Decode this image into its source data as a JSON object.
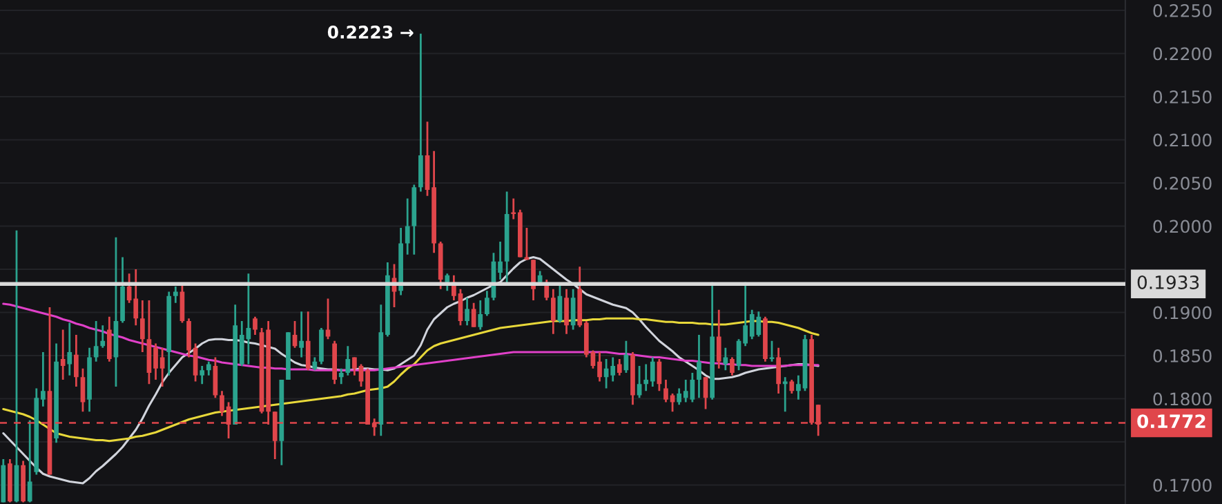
{
  "chart_data": {
    "type": "candlestick",
    "categories": [
      null,
      null,
      null,
      null,
      null,
      null,
      null,
      null,
      null,
      null,
      null,
      null,
      null,
      null,
      null,
      null,
      null,
      null,
      null,
      null,
      null,
      null,
      null,
      null,
      null,
      null,
      null,
      null,
      null,
      null,
      null,
      null,
      null,
      null,
      null,
      null,
      null,
      null,
      null,
      null,
      null,
      null,
      null,
      null,
      null,
      null,
      null,
      null,
      null,
      null,
      null,
      null,
      null,
      null,
      null,
      null,
      null,
      null,
      null,
      null,
      null,
      null,
      null,
      null,
      null,
      null,
      null,
      null,
      null,
      null,
      null,
      null,
      null,
      null,
      null,
      null,
      null,
      null,
      null,
      null,
      null,
      null,
      null,
      null,
      null,
      null,
      null,
      null,
      null,
      null,
      null,
      null,
      null,
      null,
      null,
      null,
      null,
      null,
      null,
      null,
      null,
      null,
      null,
      null,
      null,
      null,
      null,
      null,
      null,
      null,
      null,
      null,
      null,
      null,
      null,
      null,
      null,
      null,
      null,
      null,
      null,
      null,
      null,
      null
    ],
    "ohlc": [
      [
        0.168,
        0.173,
        0.168,
        0.1723
      ],
      [
        0.1725,
        0.173,
        0.168,
        0.1681
      ],
      [
        0.1681,
        0.1995,
        0.168,
        0.1723
      ],
      [
        0.1723,
        0.1728,
        0.168,
        0.1681
      ],
      [
        0.1681,
        0.1775,
        0.168,
        0.1704
      ],
      [
        0.1715,
        0.1812,
        0.1712,
        0.1801
      ],
      [
        0.1799,
        0.1854,
        0.1791,
        0.1809
      ],
      [
        0.1809,
        0.1906,
        0.1712,
        0.1712
      ],
      [
        0.1754,
        0.1864,
        0.1749,
        0.1843
      ],
      [
        0.1846,
        0.188,
        0.1822,
        0.1838
      ],
      [
        0.184,
        0.1888,
        0.1827,
        0.1854
      ],
      [
        0.1851,
        0.1874,
        0.1814,
        0.1825
      ],
      [
        0.1825,
        0.1835,
        0.1785,
        0.1796
      ],
      [
        0.1799,
        0.1859,
        0.1785,
        0.1848
      ],
      [
        0.1848,
        0.189,
        0.1843,
        0.1861
      ],
      [
        0.1861,
        0.1885,
        0.1859,
        0.1867
      ],
      [
        0.188,
        0.1895,
        0.1843,
        0.1846
      ],
      [
        0.1848,
        0.1987,
        0.1814,
        0.189
      ],
      [
        0.189,
        0.1964,
        0.1888,
        0.193
      ],
      [
        0.193,
        0.1945,
        0.1911,
        0.1914
      ],
      [
        0.1916,
        0.195,
        0.1885,
        0.1893
      ],
      [
        0.1893,
        0.1914,
        0.1854,
        0.1869
      ],
      [
        0.1869,
        0.1914,
        0.1817,
        0.183
      ],
      [
        0.1859,
        0.1864,
        0.1822,
        0.1835
      ],
      [
        0.1848,
        0.1859,
        0.1814,
        0.1835
      ],
      [
        0.1854,
        0.1924,
        0.1827,
        0.1919
      ],
      [
        0.1919,
        0.193,
        0.1911,
        0.1924
      ],
      [
        0.1924,
        0.1932,
        0.1888,
        0.189
      ],
      [
        0.189,
        0.1893,
        0.1848,
        0.1856
      ],
      [
        0.1859,
        0.1864,
        0.182,
        0.1827
      ],
      [
        0.1827,
        0.1838,
        0.1817,
        0.1833
      ],
      [
        0.1833,
        0.1843,
        0.1827,
        0.184
      ],
      [
        0.1838,
        0.1848,
        0.1801,
        0.1804
      ],
      [
        0.1804,
        0.1809,
        0.178,
        0.1785
      ],
      [
        0.1791,
        0.1796,
        0.1754,
        0.177
      ],
      [
        0.177,
        0.1909,
        0.177,
        0.1885
      ],
      [
        0.184,
        0.189,
        0.1838,
        0.1874
      ],
      [
        0.1869,
        0.1945,
        0.184,
        0.1882
      ],
      [
        0.1893,
        0.1895,
        0.1874,
        0.188
      ],
      [
        0.1877,
        0.1882,
        0.1783,
        0.1785
      ],
      [
        0.188,
        0.189,
        0.177,
        0.1785
      ],
      [
        0.1785,
        0.1785,
        0.173,
        0.1751
      ],
      [
        0.1751,
        0.1822,
        0.1723,
        0.1822
      ],
      [
        0.1822,
        0.1877,
        0.1822,
        0.1877
      ],
      [
        0.1874,
        0.189,
        0.1859,
        0.1861
      ],
      [
        0.1859,
        0.1901,
        0.1848,
        0.1867
      ],
      [
        0.1867,
        0.1901,
        0.1833,
        0.1835
      ],
      [
        0.1835,
        0.1848,
        0.1833,
        0.1843
      ],
      [
        0.1843,
        0.1882,
        0.184,
        0.188
      ],
      [
        0.188,
        0.1916,
        0.1869,
        0.1872
      ],
      [
        0.1864,
        0.1867,
        0.1817,
        0.1822
      ],
      [
        0.1825,
        0.1835,
        0.1817,
        0.183
      ],
      [
        0.183,
        0.1861,
        0.1827,
        0.1846
      ],
      [
        0.1848,
        0.1848,
        0.1827,
        0.1835
      ],
      [
        0.1838,
        0.184,
        0.1814,
        0.182
      ],
      [
        0.1833,
        0.1835,
        0.177,
        0.177
      ],
      [
        0.1772,
        0.1777,
        0.1757,
        0.1767
      ],
      [
        0.177,
        0.1909,
        0.1757,
        0.1877
      ],
      [
        0.1874,
        0.1958,
        0.1872,
        0.1943
      ],
      [
        0.194,
        0.1956,
        0.1906,
        0.1924
      ],
      [
        0.1925,
        0.1998,
        0.192,
        0.198
      ],
      [
        0.198,
        0.2032,
        0.1967,
        0.2
      ],
      [
        0.2,
        0.2048,
        0.1967,
        0.2045
      ],
      [
        0.2045,
        0.2223,
        0.204,
        0.2082
      ],
      [
        0.2082,
        0.2121,
        0.2035,
        0.2042
      ],
      [
        0.2045,
        0.2087,
        0.1969,
        0.198
      ],
      [
        0.198,
        0.1982,
        0.1927,
        0.1938
      ],
      [
        0.1935,
        0.1945,
        0.1925,
        0.1943
      ],
      [
        0.1935,
        0.1943,
        0.1914,
        0.1919
      ],
      [
        0.1922,
        0.1927,
        0.1885,
        0.189
      ],
      [
        0.189,
        0.1917,
        0.1885,
        0.1904
      ],
      [
        0.1904,
        0.1911,
        0.1883,
        0.1883
      ],
      [
        0.1883,
        0.1914,
        0.188,
        0.1898
      ],
      [
        0.1898,
        0.1925,
        0.1896,
        0.1917
      ],
      [
        0.1917,
        0.1969,
        0.1914,
        0.1959
      ],
      [
        0.1946,
        0.1982,
        0.1938,
        0.1959
      ],
      [
        0.1959,
        0.204,
        0.1932,
        0.2014
      ],
      [
        0.2016,
        0.2032,
        0.2008,
        0.2014
      ],
      [
        0.2016,
        0.2019,
        0.1964,
        0.1964
      ],
      [
        0.1964,
        0.1998,
        0.1961,
        0.1961
      ],
      [
        0.1961,
        0.1961,
        0.1914,
        0.1927
      ],
      [
        0.1935,
        0.1948,
        0.1932,
        0.1943
      ],
      [
        0.1935,
        0.1938,
        0.1914,
        0.1917
      ],
      [
        0.1917,
        0.1927,
        0.1875,
        0.189
      ],
      [
        0.189,
        0.1932,
        0.1888,
        0.1919
      ],
      [
        0.1917,
        0.1927,
        0.1875,
        0.1885
      ],
      [
        0.1885,
        0.1927,
        0.188,
        0.1917
      ],
      [
        0.1927,
        0.1953,
        0.1883,
        0.1885
      ],
      [
        0.1888,
        0.189,
        0.1848,
        0.1851
      ],
      [
        0.1854,
        0.1856,
        0.1835,
        0.1838
      ],
      [
        0.1843,
        0.1854,
        0.182,
        0.1825
      ],
      [
        0.1825,
        0.1846,
        0.1812,
        0.1835
      ],
      [
        0.1827,
        0.1848,
        0.182,
        0.1838
      ],
      [
        0.184,
        0.1846,
        0.1827,
        0.183
      ],
      [
        0.1833,
        0.1867,
        0.183,
        0.1851
      ],
      [
        0.1851,
        0.1854,
        0.1793,
        0.1804
      ],
      [
        0.1804,
        0.1838,
        0.1801,
        0.1817
      ],
      [
        0.1817,
        0.184,
        0.1809,
        0.1822
      ],
      [
        0.182,
        0.1848,
        0.1814,
        0.1843
      ],
      [
        0.1843,
        0.1846,
        0.1809,
        0.1817
      ],
      [
        0.1812,
        0.1822,
        0.1796,
        0.1799
      ],
      [
        0.1804,
        0.1806,
        0.1785,
        0.1796
      ],
      [
        0.1796,
        0.1812,
        0.1793,
        0.1806
      ],
      [
        0.1801,
        0.1822,
        0.1796,
        0.1809
      ],
      [
        0.1799,
        0.183,
        0.1796,
        0.1822
      ],
      [
        0.1822,
        0.1874,
        0.1801,
        0.1843
      ],
      [
        0.1825,
        0.1825,
        0.1788,
        0.1801
      ],
      [
        0.1801,
        0.1935,
        0.1799,
        0.1872
      ],
      [
        0.1872,
        0.1903,
        0.1835,
        0.1843
      ],
      [
        0.184,
        0.1859,
        0.1833,
        0.1848
      ],
      [
        0.1846,
        0.1848,
        0.1827,
        0.183
      ],
      [
        0.1838,
        0.1869,
        0.1833,
        0.1867
      ],
      [
        0.1864,
        0.1935,
        0.1861,
        0.1885
      ],
      [
        0.1872,
        0.1903,
        0.1869,
        0.1898
      ],
      [
        0.1874,
        0.1901,
        0.1872,
        0.1895
      ],
      [
        0.1893,
        0.1895,
        0.1843,
        0.1846
      ],
      [
        0.1846,
        0.1867,
        0.1843,
        0.1848
      ],
      [
        0.1848,
        0.1859,
        0.1806,
        0.1817
      ],
      [
        0.1817,
        0.1825,
        0.1785,
        0.182
      ],
      [
        0.182,
        0.1822,
        0.1806,
        0.1809
      ],
      [
        0.1809,
        0.1827,
        0.1799,
        0.1817
      ],
      [
        0.1812,
        0.1874,
        0.1809,
        0.1869
      ],
      [
        0.1869,
        0.1874,
        0.177,
        0.1772
      ],
      [
        0.1793,
        0.1793,
        0.1757,
        0.177
      ]
    ],
    "series": [
      {
        "type": "line",
        "color": "#d1d4dc",
        "values": [
          0.176,
          0.1752,
          0.1744,
          0.1736,
          0.1728,
          0.172,
          0.1713,
          0.171,
          0.1708,
          0.1706,
          0.1704,
          0.1703,
          0.1702,
          0.1708,
          0.1716,
          0.1722,
          0.1729,
          0.1736,
          0.1744,
          0.1754,
          0.1764,
          0.1777,
          0.1792,
          0.1805,
          0.1819,
          0.183,
          0.1839,
          0.1848,
          0.1853,
          0.1858,
          0.1864,
          0.1868,
          0.1869,
          0.1869,
          0.1868,
          0.1868,
          0.1867,
          0.1865,
          0.1864,
          0.1862,
          0.186,
          0.1858,
          0.1852,
          0.1847,
          0.1842,
          0.1839,
          0.1838,
          0.1836,
          0.1835,
          0.1834,
          0.1834,
          0.1833,
          0.1833,
          0.1834,
          0.1835,
          0.1835,
          0.1834,
          0.1834,
          0.1833,
          0.1835,
          0.184,
          0.1845,
          0.185,
          0.1862,
          0.188,
          0.1892,
          0.1899,
          0.1906,
          0.191,
          0.1913,
          0.1917,
          0.192,
          0.1924,
          0.1928,
          0.1932,
          0.1935,
          0.1943,
          0.1951,
          0.1958,
          0.1962,
          0.1964,
          0.1962,
          0.1956,
          0.195,
          0.1944,
          0.1938,
          0.1933,
          0.1927,
          0.1921,
          0.1918,
          0.1915,
          0.1912,
          0.1909,
          0.1907,
          0.1905,
          0.19,
          0.1892,
          0.1883,
          0.1875,
          0.1867,
          0.1861,
          0.1855,
          0.1848,
          0.1843,
          0.1838,
          0.1833,
          0.1827,
          0.1823,
          0.1823,
          0.1824,
          0.1825,
          0.1827,
          0.183,
          0.1832,
          0.1834,
          0.1835,
          0.1836,
          0.1837,
          0.1838,
          0.1839,
          0.184,
          0.184,
          0.1839,
          0.1838
        ]
      },
      {
        "type": "line",
        "color": "#e8d83a",
        "values": [
          0.1788,
          0.1786,
          0.1784,
          0.1782,
          0.1779,
          0.1775,
          0.177,
          0.1765,
          0.176,
          0.1758,
          0.1756,
          0.1755,
          0.1754,
          0.1753,
          0.1752,
          0.1752,
          0.1751,
          0.1752,
          0.1753,
          0.1754,
          0.1756,
          0.1757,
          0.1759,
          0.1761,
          0.1764,
          0.1767,
          0.177,
          0.1773,
          0.1776,
          0.1778,
          0.178,
          0.1782,
          0.1784,
          0.1785,
          0.1786,
          0.1787,
          0.1788,
          0.1789,
          0.179,
          0.1791,
          0.1792,
          0.1793,
          0.1794,
          0.1795,
          0.1796,
          0.1797,
          0.1798,
          0.1799,
          0.18,
          0.1801,
          0.1802,
          0.1803,
          0.1805,
          0.1806,
          0.1808,
          0.181,
          0.1811,
          0.1812,
          0.1814,
          0.182,
          0.1828,
          0.1835,
          0.184,
          0.1848,
          0.1856,
          0.1861,
          0.1864,
          0.1866,
          0.1868,
          0.187,
          0.1872,
          0.1874,
          0.1876,
          0.1878,
          0.188,
          0.1882,
          0.1883,
          0.1884,
          0.1885,
          0.1886,
          0.1887,
          0.1888,
          0.1889,
          0.189,
          0.189,
          0.189,
          0.1891,
          0.1891,
          0.1891,
          0.1892,
          0.1892,
          0.1893,
          0.1893,
          0.1893,
          0.1893,
          0.1893,
          0.1892,
          0.1892,
          0.1891,
          0.189,
          0.1889,
          0.1889,
          0.1888,
          0.1888,
          0.1888,
          0.1887,
          0.1887,
          0.1886,
          0.1886,
          0.1886,
          0.1887,
          0.1888,
          0.1889,
          0.189,
          0.189,
          0.1889,
          0.1889,
          0.1888,
          0.1886,
          0.1884,
          0.1882,
          0.1879,
          0.1876,
          0.1874
        ]
      },
      {
        "type": "line",
        "color": "#e040c8",
        "values": [
          0.191,
          0.1909,
          0.1907,
          0.1905,
          0.1903,
          0.1901,
          0.1899,
          0.1897,
          0.1895,
          0.1892,
          0.189,
          0.1887,
          0.1885,
          0.1882,
          0.188,
          0.1878,
          0.1875,
          0.1873,
          0.1871,
          0.1868,
          0.1866,
          0.1864,
          0.1862,
          0.186,
          0.1858,
          0.1856,
          0.1854,
          0.1852,
          0.185,
          0.1849,
          0.1847,
          0.1845,
          0.1844,
          0.1842,
          0.1841,
          0.184,
          0.1839,
          0.1838,
          0.1837,
          0.1836,
          0.1836,
          0.1835,
          0.1835,
          0.1834,
          0.1834,
          0.1834,
          0.1834,
          0.1833,
          0.1833,
          0.1833,
          0.1833,
          0.1833,
          0.1833,
          0.1833,
          0.1833,
          0.1833,
          0.1833,
          0.1834,
          0.1835,
          0.1836,
          0.1837,
          0.1838,
          0.1839,
          0.184,
          0.1841,
          0.1842,
          0.1843,
          0.1844,
          0.1845,
          0.1846,
          0.1847,
          0.1848,
          0.1849,
          0.185,
          0.1851,
          0.1852,
          0.1853,
          0.1854,
          0.1854,
          0.1854,
          0.1854,
          0.1854,
          0.1854,
          0.1854,
          0.1854,
          0.1854,
          0.1854,
          0.1854,
          0.1854,
          0.1854,
          0.1854,
          0.1854,
          0.1853,
          0.1852,
          0.1852,
          0.1851,
          0.185,
          0.1849,
          0.1848,
          0.1848,
          0.1847,
          0.1846,
          0.1845,
          0.1844,
          0.1844,
          0.1843,
          0.1842,
          0.1841,
          0.1841,
          0.184,
          0.184,
          0.1839,
          0.1839,
          0.1838,
          0.1838,
          0.1838,
          0.1838,
          0.1838,
          0.1838,
          0.1839,
          0.1839,
          0.1839,
          0.1839,
          0.1839
        ]
      }
    ],
    "ylim": [
      0.1678,
      0.2262
    ],
    "yticks": [
      {
        "value": 0.17,
        "label": "0.1700"
      },
      {
        "value": 0.175,
        "label": null
      },
      {
        "value": 0.18,
        "label": "0.1800"
      },
      {
        "value": 0.185,
        "label": "0.1850"
      },
      {
        "value": 0.19,
        "label": "0.1900"
      },
      {
        "value": 0.195,
        "label": null
      },
      {
        "value": 0.2,
        "label": "0.2000"
      },
      {
        "value": 0.205,
        "label": "0.2050"
      },
      {
        "value": 0.21,
        "label": "0.2100"
      },
      {
        "value": 0.215,
        "label": "0.2150"
      },
      {
        "value": 0.22,
        "label": "0.2200"
      },
      {
        "value": 0.225,
        "label": "0.2250"
      }
    ],
    "tick_labels": "y",
    "grid": "y",
    "line_style": "solid",
    "ref_lines": [
      {
        "axis": "y",
        "value": 0.1933,
        "label": "0.1933",
        "color": "#d9d9d9",
        "line_style": "solid"
      },
      {
        "axis": "y",
        "value": 0.1772,
        "label": "0.1772",
        "color": "#e0464b",
        "line_style": "dashed"
      }
    ],
    "annotations": [
      "0.2223 →"
    ]
  }
}
